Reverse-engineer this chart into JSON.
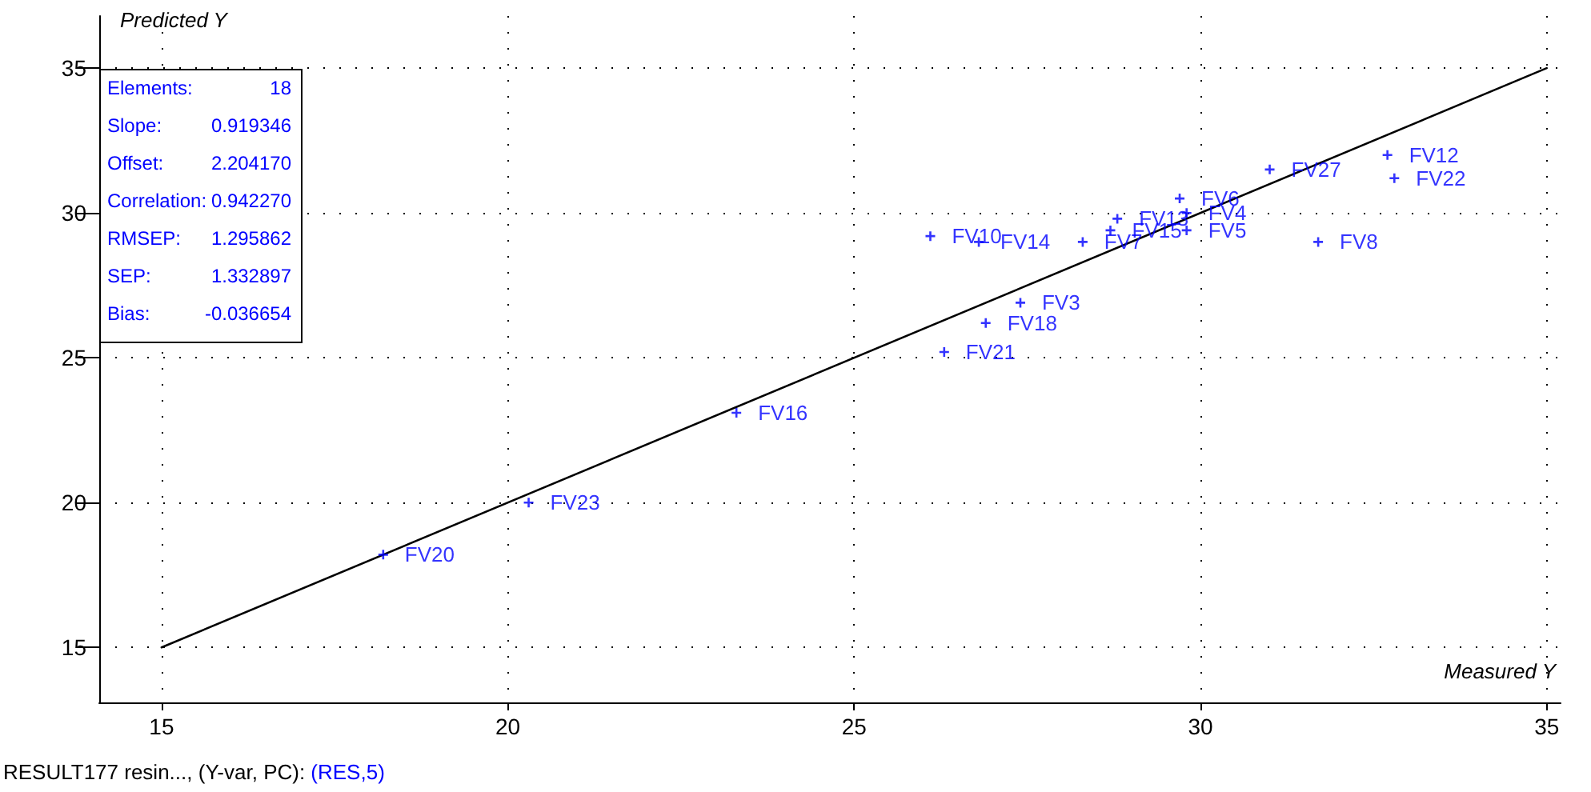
{
  "chart_data": {
    "type": "scatter",
    "xlabel": "Measured Y",
    "ylabel": "Predicted Y",
    "annotations": [
      "Elements:",
      "18",
      "Slope:",
      "0.919346",
      "Offset:",
      "2.204170",
      "Correlation:",
      "0.942270",
      "RMSEP:",
      "1.295862",
      "SEP:",
      "1.332897",
      "Bias:",
      "-0.036654",
      "RESULT177 resin..., (Y-var, PC): (RES,5)"
    ],
    "series": [
      {
        "type": "line",
        "color": "#000000",
        "x": [
          15,
          35
        ],
        "values": [
          15,
          35
        ],
        "line_style": "solid",
        "marker": "none"
      },
      {
        "name": "FV20",
        "color": "#0000ff",
        "x": [
          18.2
        ],
        "values": [
          18.2
        ]
      },
      {
        "name": "FV23",
        "color": "#0000ff",
        "x": [
          20.3
        ],
        "values": [
          20.0
        ]
      },
      {
        "name": "FV16",
        "color": "#0000ff",
        "x": [
          23.3
        ],
        "values": [
          23.1
        ]
      },
      {
        "name": "FV21",
        "color": "#0000ff",
        "x": [
          26.3
        ],
        "values": [
          25.2
        ]
      },
      {
        "name": "FV18",
        "color": "#0000ff",
        "x": [
          26.9
        ],
        "values": [
          26.2
        ]
      },
      {
        "name": "FV3",
        "color": "#0000ff",
        "x": [
          27.4
        ],
        "values": [
          26.9
        ]
      },
      {
        "name": "FV10",
        "color": "#0000ff",
        "x": [
          26.1
        ],
        "values": [
          29.2
        ]
      },
      {
        "name": "FV14",
        "color": "#0000ff",
        "x": [
          26.8
        ],
        "values": [
          29.0
        ]
      },
      {
        "name": "FV7",
        "color": "#0000ff",
        "x": [
          28.3
        ],
        "values": [
          29.0
        ]
      },
      {
        "name": "FV15",
        "color": "#0000ff",
        "x": [
          28.7
        ],
        "values": [
          29.4
        ]
      },
      {
        "name": "FV13",
        "color": "#0000ff",
        "x": [
          28.8
        ],
        "values": [
          29.8
        ]
      },
      {
        "name": "FV6",
        "color": "#0000ff",
        "x": [
          29.7
        ],
        "values": [
          30.5
        ]
      },
      {
        "name": "FV4",
        "color": "#0000ff",
        "x": [
          29.8
        ],
        "values": [
          30.0
        ]
      },
      {
        "name": "FV5",
        "color": "#0000ff",
        "x": [
          29.8
        ],
        "values": [
          29.4
        ]
      },
      {
        "name": "FV8",
        "color": "#0000ff",
        "x": [
          31.7
        ],
        "values": [
          29.0
        ]
      },
      {
        "name": "FV27",
        "color": "#0000ff",
        "x": [
          31.0
        ],
        "values": [
          31.5
        ]
      },
      {
        "name": "FV12",
        "color": "#0000ff",
        "x": [
          32.7
        ],
        "values": [
          32.0
        ]
      },
      {
        "name": "FV22",
        "color": "#0000ff",
        "x": [
          32.8
        ],
        "values": [
          31.2
        ]
      }
    ],
    "xlim": [
      14.1,
      35.2
    ],
    "ylim": [
      13.1,
      36.8
    ],
    "xticks": [
      15,
      20,
      25,
      30,
      35
    ],
    "yticks": [
      15,
      20,
      25,
      30,
      35
    ],
    "grid": true,
    "marker": "cross",
    "legend": false
  }
}
